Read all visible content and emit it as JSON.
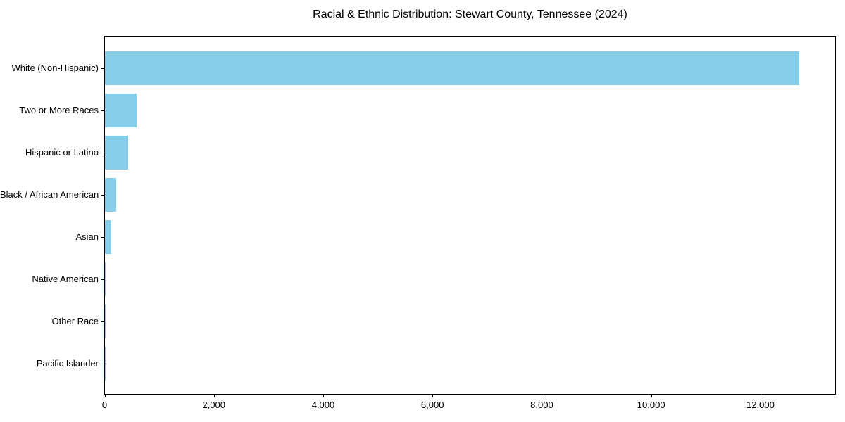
{
  "title": "Racial & Ethnic Distribution: Stewart County, Tennessee (2024)",
  "chart_data": {
    "type": "bar",
    "orientation": "horizontal",
    "title": "Racial & Ethnic Distribution: Stewart County, Tennessee (2024)",
    "xlabel": "",
    "ylabel": "",
    "categories": [
      "White (Non-Hispanic)",
      "Two or More Races",
      "Hispanic or Latino",
      "Black / African American",
      "Asian",
      "Native American",
      "Other Race",
      "Pacific Islander"
    ],
    "values": [
      12700,
      580,
      420,
      210,
      115,
      10,
      5,
      2
    ],
    "xlim": [
      0,
      13360
    ],
    "x_ticks": [
      0,
      2000,
      4000,
      6000,
      8000,
      10000,
      12000
    ],
    "x_tick_labels": [
      "0",
      "2,000",
      "4,000",
      "6,000",
      "8,000",
      "10,000",
      "12,000"
    ],
    "bar_color": "#87CEEB",
    "grid": false,
    "legend": false,
    "background_color": "#ffffff",
    "spine_color": "#000000"
  }
}
